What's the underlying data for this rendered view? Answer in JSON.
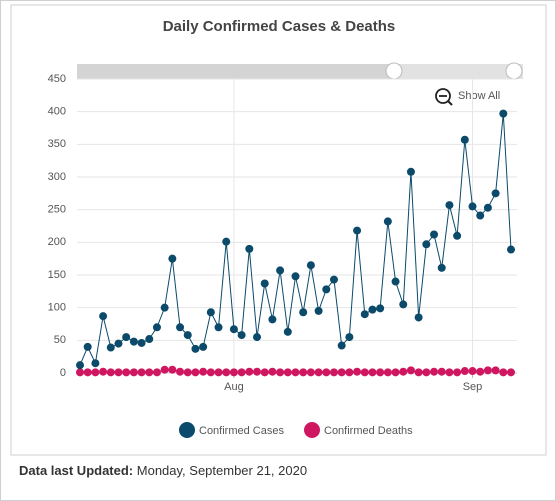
{
  "chart_data": {
    "type": "line",
    "title": "Daily Confirmed Cases & Deaths",
    "categories": [
      null,
      null,
      null,
      null,
      null,
      null,
      null,
      null,
      null,
      null,
      null,
      null,
      null,
      null,
      null,
      null,
      null,
      null,
      null,
      null,
      "Aug",
      null,
      null,
      null,
      null,
      null,
      null,
      null,
      null,
      null,
      null,
      null,
      null,
      null,
      null,
      null,
      null,
      null,
      null,
      null,
      null,
      null,
      null,
      null,
      null,
      null,
      null,
      null,
      null,
      null,
      null,
      "Sep",
      null,
      null,
      null,
      null,
      null
    ],
    "series": [
      {
        "name": "Confirmed Cases",
        "color": "#0b4a6a",
        "values": [
          12,
          40,
          15,
          87,
          39,
          45,
          55,
          48,
          46,
          52,
          70,
          100,
          175,
          70,
          58,
          37,
          40,
          93,
          70,
          201,
          67,
          58,
          190,
          55,
          137,
          82,
          157,
          63,
          148,
          93,
          165,
          95,
          128,
          143,
          42,
          55,
          218,
          90,
          97,
          99,
          232,
          140,
          105,
          308,
          85,
          197,
          212,
          161,
          257,
          210,
          357,
          255,
          241,
          253,
          275,
          397,
          189
        ]
      },
      {
        "name": "Confirmed Deaths",
        "color": "#cf1761",
        "values": [
          1,
          1,
          1,
          2,
          1,
          1,
          1,
          1,
          1,
          1,
          1,
          5,
          5,
          2,
          1,
          1,
          2,
          1,
          1,
          1,
          1,
          1,
          2,
          2,
          1,
          2,
          1,
          1,
          1,
          1,
          1,
          1,
          1,
          1,
          1,
          1,
          2,
          1,
          1,
          1,
          1,
          1,
          2,
          4,
          1,
          1,
          2,
          2,
          1,
          1,
          3,
          3,
          2,
          4,
          4,
          1,
          1
        ]
      }
    ],
    "ylim": [
      0,
      450
    ],
    "yticks": [
      0,
      50,
      100,
      150,
      200,
      250,
      300,
      350,
      400,
      450
    ],
    "grid": true
  },
  "controls": {
    "show_all": "Show All"
  },
  "footer": {
    "label": "Data last Updated:",
    "value": "Monday, September 21, 2020"
  }
}
